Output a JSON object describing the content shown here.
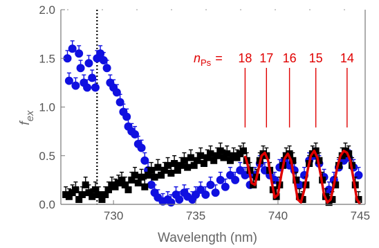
{
  "chart_data": {
    "type": "scatter",
    "xlabel": "Wavelength (nm)",
    "ylabel_main": "f",
    "ylabel_sub": "ex",
    "xlim": [
      726.8,
      745.3
    ],
    "ylim": [
      0.0,
      2.0
    ],
    "x_ticks": [
      730,
      735,
      740,
      745
    ],
    "x_tick_labels": [
      "730",
      "735",
      "740",
      "745"
    ],
    "y_ticks": [
      0.0,
      0.5,
      1.0,
      1.5,
      2.0
    ],
    "y_tick_labels": [
      "0.0",
      "0.5",
      "1.0",
      "1.5",
      "2.0"
    ],
    "grid": false,
    "vertical_dotted_line_x": 729.0,
    "annotation": {
      "prefix_italic": "n",
      "prefix_sub": "Ps",
      "equals": "=",
      "color": "#e00000",
      "levels": [
        {
          "label": "18",
          "x": 738.0
        },
        {
          "label": "17",
          "x": 739.3
        },
        {
          "label": "16",
          "x": 740.7
        },
        {
          "label": "15",
          "x": 742.3
        },
        {
          "label": "14",
          "x": 744.2
        }
      ]
    },
    "series": [
      {
        "color": "#1010e0",
        "marker": "circle",
        "points": [
          [
            727.2,
            1.5
          ],
          [
            727.3,
            1.27
          ],
          [
            727.5,
            1.6
          ],
          [
            727.7,
            1.22
          ],
          [
            727.9,
            1.55
          ],
          [
            728.0,
            1.4
          ],
          [
            728.2,
            1.25
          ],
          [
            728.4,
            1.2
          ],
          [
            728.5,
            1.45
          ],
          [
            728.7,
            1.3
          ],
          [
            728.9,
            1.2
          ],
          [
            729.0,
            1.5
          ],
          [
            729.2,
            1.55
          ],
          [
            729.4,
            1.48
          ],
          [
            729.6,
            1.4
          ],
          [
            729.8,
            1.25
          ],
          [
            730.0,
            1.2
          ],
          [
            730.2,
            1.15
          ],
          [
            730.4,
            1.05
          ],
          [
            730.6,
            0.95
          ],
          [
            730.8,
            0.9
          ],
          [
            730.9,
            0.8
          ],
          [
            731.1,
            0.75
          ],
          [
            731.3,
            0.72
          ],
          [
            731.5,
            0.62
          ],
          [
            731.7,
            0.58
          ],
          [
            731.9,
            0.45
          ],
          [
            732.1,
            0.35
          ],
          [
            732.3,
            0.2
          ],
          [
            732.5,
            0.12
          ],
          [
            732.7,
            0.07
          ],
          [
            733.0,
            0.03
          ],
          [
            733.3,
            0.05
          ],
          [
            733.5,
            0.02
          ],
          [
            733.8,
            0.1
          ],
          [
            734.0,
            0.05
          ],
          [
            734.3,
            0.12
          ],
          [
            734.5,
            0.08
          ],
          [
            734.8,
            0.05
          ],
          [
            735.0,
            0.1
          ],
          [
            735.3,
            0.15
          ],
          [
            735.6,
            0.1
          ],
          [
            735.9,
            0.2
          ],
          [
            736.2,
            0.12
          ],
          [
            736.5,
            0.25
          ],
          [
            736.8,
            0.18
          ],
          [
            737.1,
            0.3
          ],
          [
            737.4,
            0.25
          ],
          [
            737.7,
            0.35
          ],
          [
            738.0,
            0.3
          ],
          [
            738.3,
            0.2
          ],
          [
            738.6,
            0.3
          ],
          [
            738.9,
            0.42
          ],
          [
            739.2,
            0.35
          ],
          [
            739.5,
            0.3
          ],
          [
            739.8,
            0.25
          ],
          [
            740.1,
            0.38
          ],
          [
            740.4,
            0.45
          ],
          [
            740.7,
            0.4
          ],
          [
            741.0,
            0.35
          ],
          [
            741.3,
            0.2
          ],
          [
            741.6,
            0.3
          ],
          [
            741.9,
            0.45
          ],
          [
            742.2,
            0.5
          ],
          [
            742.5,
            0.42
          ],
          [
            742.8,
            0.28
          ],
          [
            743.1,
            0.15
          ],
          [
            743.4,
            0.25
          ],
          [
            743.7,
            0.38
          ],
          [
            744.0,
            0.45
          ],
          [
            744.3,
            0.48
          ],
          [
            744.6,
            0.38
          ],
          [
            744.9,
            0.3
          ]
        ]
      },
      {
        "color": "#000000",
        "marker": "square",
        "points": [
          [
            727.1,
            0.1
          ],
          [
            727.3,
            0.08
          ],
          [
            727.5,
            0.12
          ],
          [
            727.7,
            0.15
          ],
          [
            727.9,
            0.05
          ],
          [
            728.1,
            0.1
          ],
          [
            728.3,
            0.2
          ],
          [
            728.5,
            0.12
          ],
          [
            728.7,
            0.08
          ],
          [
            728.9,
            0.15
          ],
          [
            729.1,
            0.1
          ],
          [
            729.3,
            0.05
          ],
          [
            729.5,
            0.1
          ],
          [
            729.7,
            0.15
          ],
          [
            729.9,
            0.2
          ],
          [
            730.1,
            0.18
          ],
          [
            730.3,
            0.22
          ],
          [
            730.5,
            0.25
          ],
          [
            730.7,
            0.2
          ],
          [
            730.9,
            0.15
          ],
          [
            731.1,
            0.25
          ],
          [
            731.3,
            0.3
          ],
          [
            731.5,
            0.22
          ],
          [
            731.7,
            0.28
          ],
          [
            731.9,
            0.18
          ],
          [
            732.1,
            0.3
          ],
          [
            732.3,
            0.35
          ],
          [
            732.5,
            0.28
          ],
          [
            732.7,
            0.38
          ],
          [
            732.9,
            0.3
          ],
          [
            733.1,
            0.35
          ],
          [
            733.3,
            0.4
          ],
          [
            733.5,
            0.32
          ],
          [
            733.7,
            0.42
          ],
          [
            733.9,
            0.35
          ],
          [
            734.1,
            0.4
          ],
          [
            734.3,
            0.45
          ],
          [
            734.5,
            0.38
          ],
          [
            734.7,
            0.48
          ],
          [
            734.9,
            0.4
          ],
          [
            735.1,
            0.45
          ],
          [
            735.3,
            0.5
          ],
          [
            735.5,
            0.42
          ],
          [
            735.7,
            0.48
          ],
          [
            735.9,
            0.52
          ],
          [
            736.1,
            0.45
          ],
          [
            736.3,
            0.5
          ],
          [
            736.5,
            0.55
          ],
          [
            736.7,
            0.48
          ],
          [
            736.9,
            0.52
          ],
          [
            737.1,
            0.45
          ],
          [
            737.3,
            0.5
          ],
          [
            737.5,
            0.48
          ],
          [
            737.7,
            0.52
          ],
          [
            737.9,
            0.55
          ],
          [
            738.1,
            0.45
          ],
          [
            738.3,
            0.35
          ],
          [
            738.5,
            0.2
          ],
          [
            738.7,
            0.28
          ],
          [
            738.9,
            0.45
          ],
          [
            739.1,
            0.52
          ],
          [
            739.3,
            0.5
          ],
          [
            739.5,
            0.35
          ],
          [
            739.7,
            0.15
          ],
          [
            739.9,
            0.08
          ],
          [
            740.1,
            0.2
          ],
          [
            740.3,
            0.4
          ],
          [
            740.5,
            0.5
          ],
          [
            740.7,
            0.52
          ],
          [
            740.9,
            0.45
          ],
          [
            741.1,
            0.25
          ],
          [
            741.3,
            0.08
          ],
          [
            741.5,
            0.05
          ],
          [
            741.7,
            0.2
          ],
          [
            741.9,
            0.42
          ],
          [
            742.1,
            0.52
          ],
          [
            742.3,
            0.55
          ],
          [
            742.5,
            0.45
          ],
          [
            742.7,
            0.25
          ],
          [
            742.9,
            0.08
          ],
          [
            743.1,
            0.02
          ],
          [
            743.3,
            0.05
          ],
          [
            743.5,
            0.2
          ],
          [
            743.7,
            0.4
          ],
          [
            743.9,
            0.5
          ],
          [
            744.1,
            0.55
          ],
          [
            744.3,
            0.52
          ],
          [
            744.5,
            0.4
          ],
          [
            744.7,
            0.2
          ],
          [
            744.9,
            0.05
          ]
        ]
      }
    ],
    "fit_line": {
      "color": "#e00000",
      "points": [
        [
          738.0,
          0.5
        ],
        [
          738.2,
          0.38
        ],
        [
          738.4,
          0.22
        ],
        [
          738.6,
          0.2
        ],
        [
          738.8,
          0.35
        ],
        [
          739.0,
          0.5
        ],
        [
          739.2,
          0.53
        ],
        [
          739.4,
          0.45
        ],
        [
          739.6,
          0.25
        ],
        [
          739.8,
          0.07
        ],
        [
          740.0,
          0.1
        ],
        [
          740.2,
          0.3
        ],
        [
          740.4,
          0.47
        ],
        [
          740.6,
          0.52
        ],
        [
          740.8,
          0.45
        ],
        [
          741.0,
          0.25
        ],
        [
          741.2,
          0.05
        ],
        [
          741.4,
          0.02
        ],
        [
          741.6,
          0.15
        ],
        [
          741.8,
          0.35
        ],
        [
          742.0,
          0.5
        ],
        [
          742.2,
          0.55
        ],
        [
          742.4,
          0.48
        ],
        [
          742.6,
          0.3
        ],
        [
          742.8,
          0.1
        ],
        [
          743.0,
          0.02
        ],
        [
          743.2,
          0.05
        ],
        [
          743.4,
          0.2
        ],
        [
          743.6,
          0.38
        ],
        [
          743.8,
          0.5
        ],
        [
          744.0,
          0.55
        ],
        [
          744.2,
          0.53
        ],
        [
          744.4,
          0.45
        ],
        [
          744.6,
          0.25
        ],
        [
          744.8,
          0.05
        ],
        [
          745.0,
          0.0
        ]
      ]
    }
  }
}
